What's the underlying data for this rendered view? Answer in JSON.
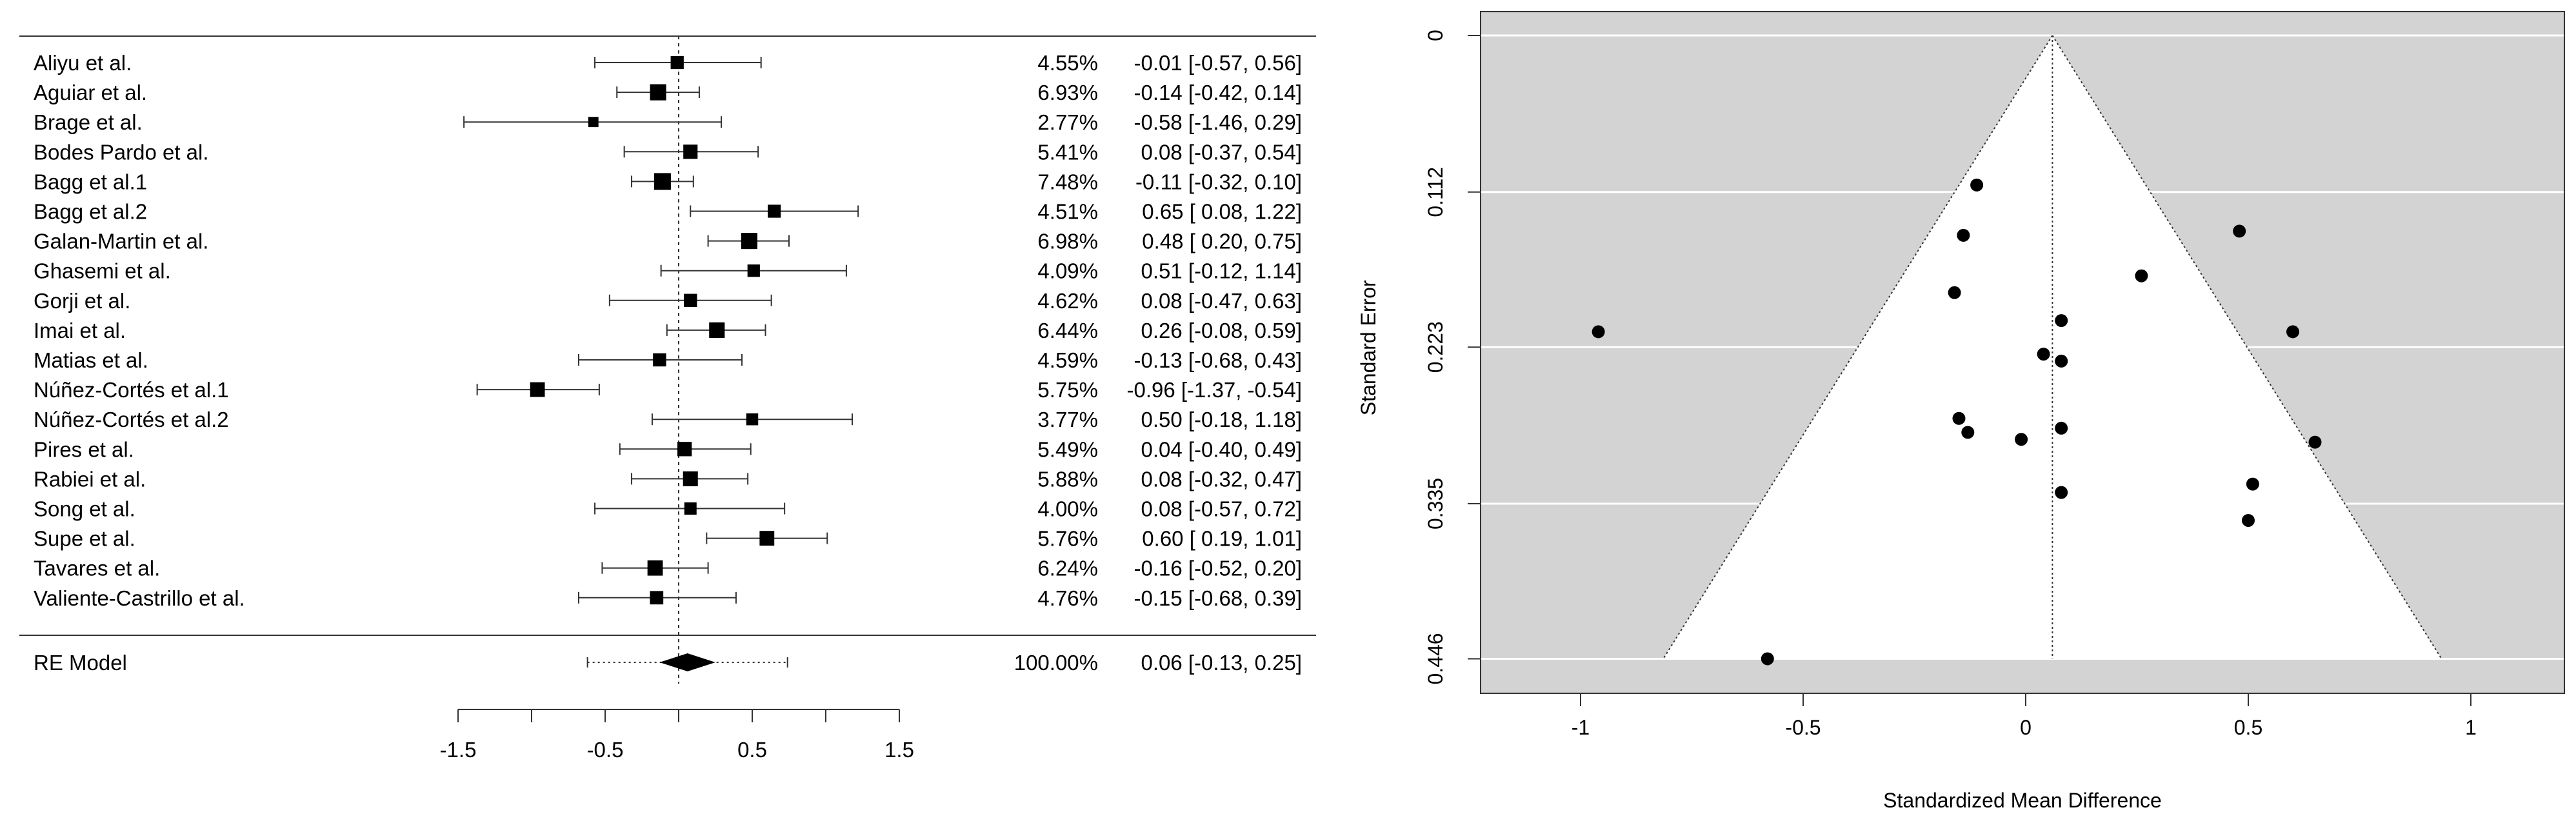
{
  "chart_data": [
    {
      "type": "forest",
      "xticks": [
        -1.5,
        -0.5,
        0.5,
        1.5
      ],
      "xtick_labels": [
        "-1.5",
        "-0.5",
        "0.5",
        "1.5"
      ],
      "xlim": [
        -1.5,
        1.5
      ],
      "reference_line": 0,
      "studies": [
        {
          "label": "Aliyu et al.",
          "weight": "4.55%",
          "est": -0.01,
          "lo": -0.57,
          "hi": 0.56,
          "text": "-0.01 [-0.57,  0.56]"
        },
        {
          "label": "Aguiar et al.",
          "weight": "6.93%",
          "est": -0.14,
          "lo": -0.42,
          "hi": 0.14,
          "text": "-0.14 [-0.42,  0.14]"
        },
        {
          "label": "Brage et al.",
          "weight": "2.77%",
          "est": -0.58,
          "lo": -1.46,
          "hi": 0.29,
          "text": "-0.58 [-1.46,  0.29]"
        },
        {
          "label": "Bodes Pardo et al.",
          "weight": "5.41%",
          "est": 0.08,
          "lo": -0.37,
          "hi": 0.54,
          "text": "0.08 [-0.37,  0.54]"
        },
        {
          "label": "Bagg et al.1",
          "weight": "7.48%",
          "est": -0.11,
          "lo": -0.32,
          "hi": 0.1,
          "text": "-0.11 [-0.32,  0.10]"
        },
        {
          "label": "Bagg et al.2",
          "weight": "4.51%",
          "est": 0.65,
          "lo": 0.08,
          "hi": 1.22,
          "text": "0.65 [ 0.08,  1.22]"
        },
        {
          "label": "Galan-Martin et al.",
          "weight": "6.98%",
          "est": 0.48,
          "lo": 0.2,
          "hi": 0.75,
          "text": "0.48 [ 0.20,  0.75]"
        },
        {
          "label": "Ghasemi et al.",
          "weight": "4.09%",
          "est": 0.51,
          "lo": -0.12,
          "hi": 1.14,
          "text": "0.51 [-0.12,  1.14]"
        },
        {
          "label": "Gorji et al.",
          "weight": "4.62%",
          "est": 0.08,
          "lo": -0.47,
          "hi": 0.63,
          "text": "0.08 [-0.47,  0.63]"
        },
        {
          "label": "Imai et al.",
          "weight": "6.44%",
          "est": 0.26,
          "lo": -0.08,
          "hi": 0.59,
          "text": "0.26 [-0.08,  0.59]"
        },
        {
          "label": "Matias et al.",
          "weight": "4.59%",
          "est": -0.13,
          "lo": -0.68,
          "hi": 0.43,
          "text": "-0.13 [-0.68,  0.43]"
        },
        {
          "label": "Núñez-Cortés et al.1",
          "weight": "5.75%",
          "est": -0.96,
          "lo": -1.37,
          "hi": -0.54,
          "text": "-0.96 [-1.37, -0.54]"
        },
        {
          "label": "Núñez-Cortés et al.2",
          "weight": "3.77%",
          "est": 0.5,
          "lo": -0.18,
          "hi": 1.18,
          "text": "0.50 [-0.18,  1.18]"
        },
        {
          "label": "Pires et al.",
          "weight": "5.49%",
          "est": 0.04,
          "lo": -0.4,
          "hi": 0.49,
          "text": "0.04 [-0.40,  0.49]"
        },
        {
          "label": "Rabiei et al.",
          "weight": "5.88%",
          "est": 0.08,
          "lo": -0.32,
          "hi": 0.47,
          "text": "0.08 [-0.32,  0.47]"
        },
        {
          "label": "Song et al.",
          "weight": "4.00%",
          "est": 0.08,
          "lo": -0.57,
          "hi": 0.72,
          "text": "0.08 [-0.57,  0.72]"
        },
        {
          "label": "Supe et al.",
          "weight": "5.76%",
          "est": 0.6,
          "lo": 0.19,
          "hi": 1.01,
          "text": "0.60 [ 0.19,  1.01]"
        },
        {
          "label": "Tavares et al.",
          "weight": "6.24%",
          "est": -0.16,
          "lo": -0.52,
          "hi": 0.2,
          "text": "-0.16 [-0.52,  0.20]"
        },
        {
          "label": "Valiente-Castrillo et al.",
          "weight": "4.76%",
          "est": -0.15,
          "lo": -0.68,
          "hi": 0.39,
          "text": "-0.15 [-0.68,  0.39]"
        }
      ],
      "summary": {
        "label": "RE Model",
        "weight": "100.00%",
        "est": 0.06,
        "lo": -0.13,
        "hi": 0.25,
        "pi_lo": -0.62,
        "pi_hi": 0.74,
        "text": "0.06 [-0.13,  0.25]"
      }
    },
    {
      "type": "scatter",
      "subtype": "funnel",
      "xlabel": "Standardized Mean Difference",
      "ylabel": "Standard Error",
      "xlim": [
        -1.22,
        1.22
      ],
      "ylim": [
        0.446,
        0
      ],
      "xticks": [
        -1,
        -0.5,
        0,
        0.5,
        1
      ],
      "xtick_labels": [
        "-1",
        "-0.5",
        "0",
        "0.5",
        "1"
      ],
      "yticks": [
        0,
        0.112,
        0.223,
        0.335,
        0.446
      ],
      "ytick_labels": [
        "0",
        "0.112",
        "0.223",
        "0.335",
        "0.446"
      ],
      "grid": true,
      "center": 0.06,
      "points": [
        {
          "x": -0.01,
          "y": 0.289
        },
        {
          "x": -0.14,
          "y": 0.143
        },
        {
          "x": -0.58,
          "y": 0.446
        },
        {
          "x": 0.08,
          "y": 0.233
        },
        {
          "x": -0.11,
          "y": 0.107
        },
        {
          "x": 0.65,
          "y": 0.291
        },
        {
          "x": 0.48,
          "y": 0.14
        },
        {
          "x": 0.51,
          "y": 0.321
        },
        {
          "x": 0.08,
          "y": 0.281
        },
        {
          "x": 0.26,
          "y": 0.172
        },
        {
          "x": -0.13,
          "y": 0.284
        },
        {
          "x": -0.96,
          "y": 0.212
        },
        {
          "x": 0.5,
          "y": 0.347
        },
        {
          "x": 0.04,
          "y": 0.228
        },
        {
          "x": 0.08,
          "y": 0.204
        },
        {
          "x": 0.08,
          "y": 0.327
        },
        {
          "x": 0.6,
          "y": 0.212
        },
        {
          "x": -0.16,
          "y": 0.184
        },
        {
          "x": -0.15,
          "y": 0.274
        }
      ]
    }
  ]
}
